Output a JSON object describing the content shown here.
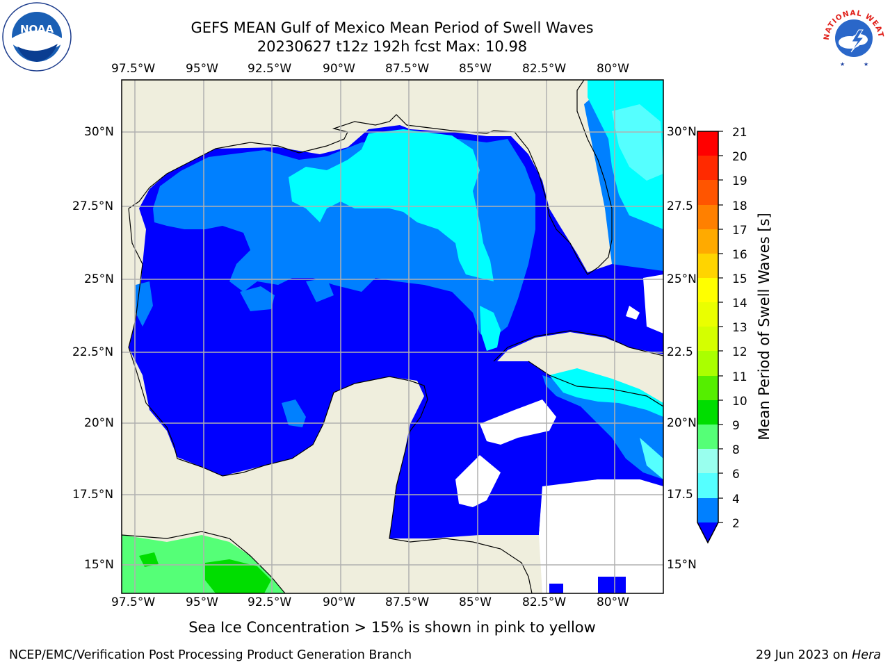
{
  "header": {
    "title_line1": "GEFS MEAN Gulf of Mexico Mean Period of Swell Waves",
    "title_line2": "20230627 t12z 192h fcst   Max: 10.98"
  },
  "logos": {
    "left": {
      "icon": "noaa-logo-icon",
      "text": "NOAA"
    },
    "right": {
      "icon": "nws-logo-icon",
      "text": "NATIONAL WEATHER SERVICE"
    }
  },
  "map": {
    "lon_ticks": [
      "97.5°W",
      "95°W",
      "92.5°W",
      "90°W",
      "87.5°W",
      "85°W",
      "82.5°W",
      "80°W"
    ],
    "lat_ticks_left": [
      "30°N",
      "27.5°N",
      "25°N",
      "22.5°N",
      "20°N",
      "17.5°N",
      "15°N"
    ],
    "lat_ticks_right": [
      "30°N",
      "27.5",
      "25°N",
      "22.5",
      "20°N",
      "17.5",
      "15°N"
    ],
    "land_color": "#efeedd",
    "grid_color": "#b0b0b0"
  },
  "colorbar": {
    "label": "Mean Period of Swell Waves [s]",
    "ticks": [
      "21",
      "20",
      "19",
      "18",
      "17",
      "16",
      "15",
      "14",
      "13",
      "12",
      "11",
      "10",
      "9",
      "8",
      "6",
      "4",
      "2"
    ],
    "colors": [
      "#ff0000",
      "#ff2a00",
      "#ff5500",
      "#ff8000",
      "#ffaa00",
      "#ffd400",
      "#ffff00",
      "#eaff00",
      "#d4ff00",
      "#aaff00",
      "#55ee00",
      "#00dd00",
      "#55ff77",
      "#99ffee",
      "#55ffff",
      "#00ffff",
      "#0080ff",
      "#0000ff"
    ]
  },
  "footer": {
    "note": "Sea Ice Concentration > 15% is shown in pink to yellow",
    "credit": "NCEP/EMC/Verification Post Processing Product Generation Branch",
    "date": "29 Jun 2023 on ",
    "machine": "Hera"
  }
}
